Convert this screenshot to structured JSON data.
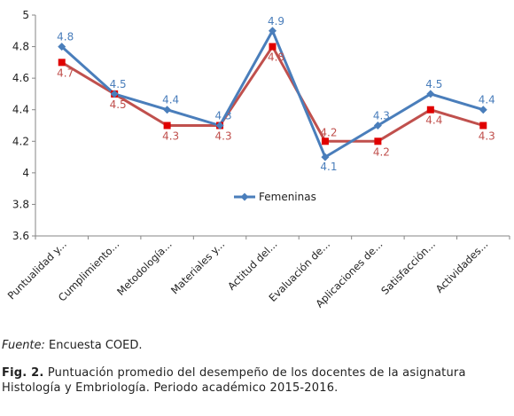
{
  "chart_data": {
    "type": "line",
    "categories": [
      "Puntualidad y...",
      "Cumplimiento...",
      "Metodología...",
      "Materiales y...",
      "Actitud del...",
      "Evaluación de...",
      "Aplicaciones de...",
      "Satisfacción...",
      "Actividades..."
    ],
    "series": [
      {
        "name": "Femeninas",
        "values": [
          4.8,
          4.5,
          4.4,
          4.3,
          4.9,
          4.1,
          4.3,
          4.5,
          4.4
        ],
        "color": "#4a7ebb",
        "marker": "diamond"
      },
      {
        "values": [
          4.7,
          4.5,
          4.3,
          4.3,
          4.8,
          4.2,
          4.2,
          4.4,
          4.3
        ],
        "color": "#c0504d",
        "marker": "square"
      }
    ],
    "ylim": [
      3.6,
      5
    ],
    "yticks": [
      "3.6",
      "3.8",
      "4",
      "4.2",
      "4.4",
      "4.6",
      "4.8",
      "5"
    ],
    "legend_position": "center-right",
    "grid": false
  },
  "source": {
    "label": "Fuente:",
    "text": " Encuesta COED."
  },
  "caption": {
    "label": "Fig. 2.",
    "text": " Puntuación promedio del desempeño de los docentes de la asignatura Histología y Embriología. Periodo académico 2015-2016."
  }
}
